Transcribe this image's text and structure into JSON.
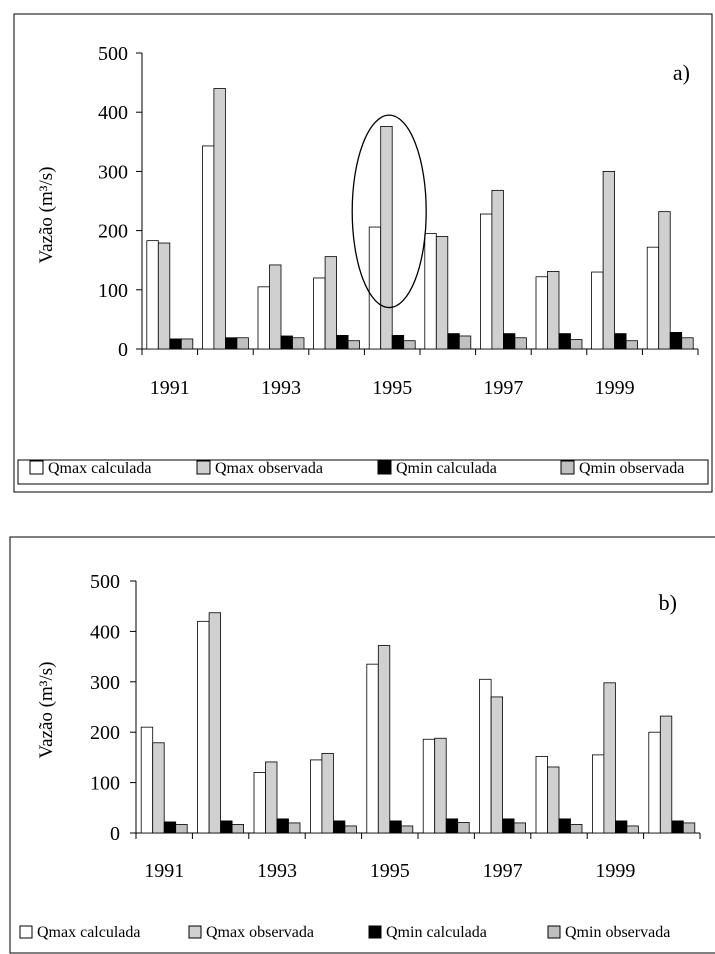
{
  "colors": {
    "qmax_calculada": "#ffffff",
    "qmax_observada": "#d0d0d0",
    "qmin_calculada": "#000000",
    "qmin_observada": "#c0c0c0",
    "stroke": "#000000"
  },
  "legend": [
    "Qmax calculada",
    "Qmax observada",
    "Qmin calculada",
    "Qmin observada"
  ],
  "chart_data": [
    {
      "type": "bar",
      "panel_label": "a)",
      "ylabel": "Vazão (m³/s)",
      "ylim": [
        0,
        500
      ],
      "yticks": [
        0,
        100,
        200,
        300,
        400,
        500
      ],
      "categories": [
        "1991",
        "1992",
        "1993",
        "1994",
        "1995",
        "1996",
        "1997",
        "1998",
        "1999",
        "2000"
      ],
      "x_tick_labels": [
        "1991",
        "1993",
        "1995",
        "1997",
        "1999"
      ],
      "highlight_category": "1995",
      "legend_position": "bottom",
      "series": [
        {
          "name": "Qmax calculada",
          "values": [
            183,
            343,
            105,
            120,
            206,
            195,
            228,
            122,
            130,
            172
          ]
        },
        {
          "name": "Qmax observada",
          "values": [
            179,
            440,
            142,
            156,
            376,
            190,
            268,
            131,
            300,
            232
          ]
        },
        {
          "name": "Qmin calculada",
          "values": [
            17,
            19,
            22,
            23,
            23,
            26,
            26,
            26,
            26,
            28
          ]
        },
        {
          "name": "Qmin observada",
          "values": [
            17,
            19,
            19,
            14,
            14,
            22,
            19,
            16,
            14,
            19
          ]
        }
      ]
    },
    {
      "type": "bar",
      "panel_label": "b)",
      "ylabel": "Vazão (m³/s)",
      "ylim": [
        0,
        500
      ],
      "yticks": [
        0,
        100,
        200,
        300,
        400,
        500
      ],
      "categories": [
        "1991",
        "1992",
        "1993",
        "1994",
        "1995",
        "1996",
        "1997",
        "1998",
        "1999",
        "2000"
      ],
      "x_tick_labels": [
        "1991",
        "1993",
        "1995",
        "1997",
        "1999"
      ],
      "legend_position": "bottom",
      "series": [
        {
          "name": "Qmax calculada",
          "values": [
            210,
            420,
            120,
            145,
            335,
            186,
            305,
            152,
            155,
            200
          ]
        },
        {
          "name": "Qmax observada",
          "values": [
            179,
            437,
            141,
            158,
            372,
            188,
            270,
            131,
            298,
            232
          ]
        },
        {
          "name": "Qmin calculada",
          "values": [
            22,
            24,
            28,
            24,
            24,
            28,
            28,
            28,
            24,
            24
          ]
        },
        {
          "name": "Qmin observada",
          "values": [
            17,
            17,
            20,
            14,
            14,
            21,
            20,
            17,
            14,
            20
          ]
        }
      ]
    }
  ]
}
